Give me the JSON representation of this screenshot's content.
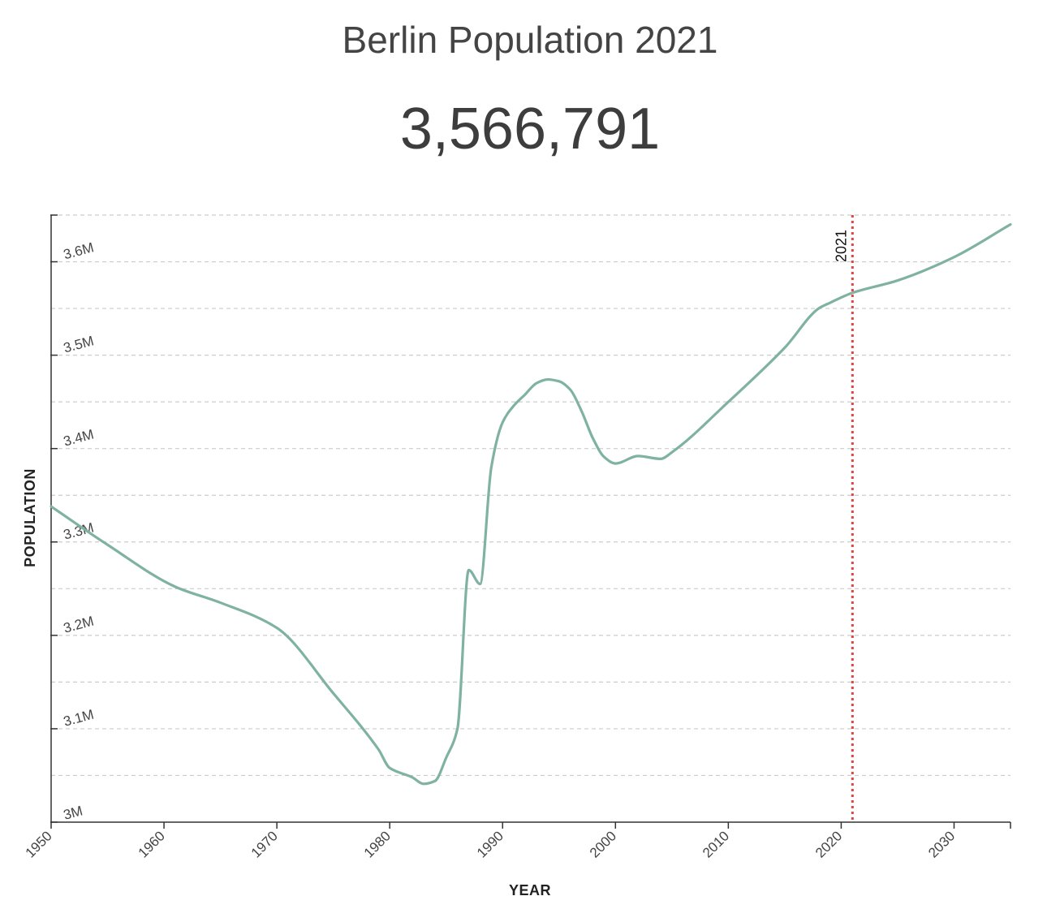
{
  "header": {
    "title": "Berlin Population 2021",
    "value": "3,566,791"
  },
  "chart_data": {
    "type": "line",
    "title": "Berlin Population 2021",
    "xlabel": "YEAR",
    "ylabel": "POPULATION",
    "xlim": [
      1950,
      2035
    ],
    "ylim": [
      3000000,
      3650000
    ],
    "x_ticks": [
      {
        "value": 1950,
        "label": "1950"
      },
      {
        "value": 1960,
        "label": "1960"
      },
      {
        "value": 1970,
        "label": "1970"
      },
      {
        "value": 1980,
        "label": "1980"
      },
      {
        "value": 1990,
        "label": "1990"
      },
      {
        "value": 2000,
        "label": "2000"
      },
      {
        "value": 2010,
        "label": "2010"
      },
      {
        "value": 2020,
        "label": "2020"
      },
      {
        "value": 2030,
        "label": "2030"
      }
    ],
    "y_ticks": [
      {
        "value": 3000000,
        "label": "3M"
      },
      {
        "value": 3100000,
        "label": "3.1M"
      },
      {
        "value": 3200000,
        "label": "3.2M"
      },
      {
        "value": 3300000,
        "label": "3.3M"
      },
      {
        "value": 3400000,
        "label": "3.4M"
      },
      {
        "value": 3500000,
        "label": "3.5M"
      },
      {
        "value": 3600000,
        "label": "3.6M"
      }
    ],
    "grid_values": [
      3050000,
      3100000,
      3150000,
      3200000,
      3250000,
      3300000,
      3350000,
      3400000,
      3450000,
      3500000,
      3550000,
      3600000,
      3650000
    ],
    "grid": true,
    "line_color": "#7fb2a3",
    "marker": {
      "x": 2021,
      "label": "2021",
      "color": "#e04545"
    },
    "series": [
      {
        "values": [
          [
            1950,
            3338000
          ],
          [
            1955,
            3297000
          ],
          [
            1961,
            3252000
          ],
          [
            1965,
            3235000
          ],
          [
            1970,
            3208000
          ],
          [
            1975,
            3138000
          ],
          [
            1979,
            3078000
          ],
          [
            1980,
            3058000
          ],
          [
            1982,
            3048000
          ],
          [
            1983,
            3041000
          ],
          [
            1984,
            3044000
          ],
          [
            1985,
            3069000
          ],
          [
            1986,
            3100000
          ],
          [
            1987,
            3270000
          ],
          [
            1988,
            3255000
          ],
          [
            1989,
            3380000
          ],
          [
            1990,
            3428000
          ],
          [
            1991,
            3446000
          ],
          [
            1992,
            3458000
          ],
          [
            1993,
            3470000
          ],
          [
            1994,
            3474000
          ],
          [
            1995,
            3472000
          ],
          [
            1996,
            3463000
          ],
          [
            1997,
            3440000
          ],
          [
            1998,
            3411000
          ],
          [
            1999,
            3391000
          ],
          [
            2000,
            3384000
          ],
          [
            2002,
            3392000
          ],
          [
            2004,
            3389000
          ],
          [
            2005,
            3396000
          ],
          [
            2010,
            3450000
          ],
          [
            2015,
            3508000
          ],
          [
            2018,
            3550000
          ],
          [
            2019,
            3556000
          ],
          [
            2021,
            3566791
          ],
          [
            2025,
            3580000
          ],
          [
            2030,
            3605000
          ],
          [
            2035,
            3640000
          ]
        ]
      }
    ]
  }
}
